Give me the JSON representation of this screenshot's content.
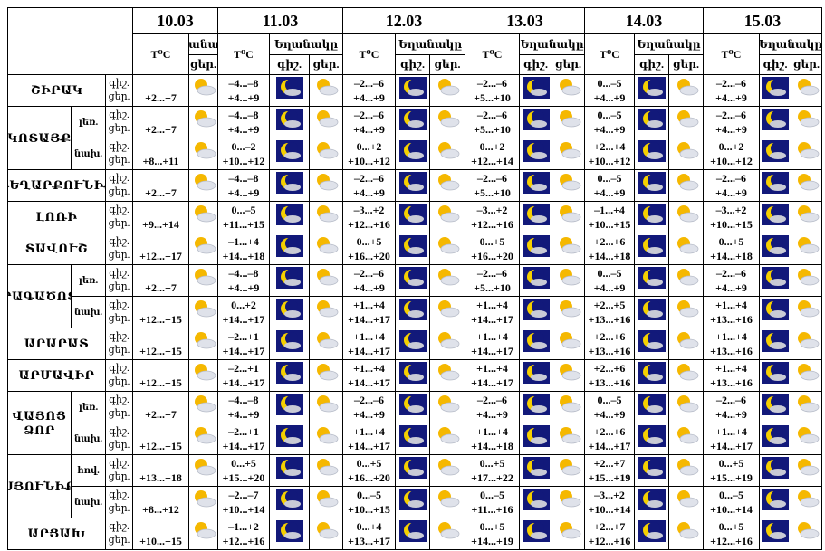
{
  "header": {
    "dates": [
      "10.03",
      "11.03",
      "12.03",
      "13.03",
      "14.03",
      "15.03"
    ],
    "temp_label": "T⁰C",
    "weather_label": "Եղանակը",
    "night": "գիշ.",
    "day": "ցեր."
  },
  "regions": [
    {
      "name": "ՇԻՐԱԿ",
      "rows": [
        {
          "first": "+2...+7",
          "days": [
            [
              "–4...–8",
              "+4...+9"
            ],
            [
              "–2...–6",
              "+4...+9"
            ],
            [
              "–2...–6",
              "+5...+10"
            ],
            [
              "0...–5",
              "+4...+9"
            ],
            [
              "–2...–6",
              "+4...+9"
            ]
          ]
        }
      ]
    },
    {
      "name": "ԿՈՏԱՅՔ",
      "rows": [
        {
          "sub": "լեռ.",
          "first": "+2...+7",
          "days": [
            [
              "–4...–8",
              "+4...+9"
            ],
            [
              "–2...–6",
              "+4...+9"
            ],
            [
              "–2...–6",
              "+5...+10"
            ],
            [
              "0...–5",
              "+4...+9"
            ],
            [
              "–2...–6",
              "+4...+9"
            ]
          ]
        },
        {
          "sub": "նախ.",
          "first": "+8...+11",
          "days": [
            [
              "0...–2",
              "+10...+12"
            ],
            [
              "0...+2",
              "+10...+12"
            ],
            [
              "0...+2",
              "+12...+14"
            ],
            [
              "+2...+4",
              "+10...+12"
            ],
            [
              "0...+2",
              "+10...+12"
            ]
          ]
        }
      ]
    },
    {
      "name": "ԳԵՂԱՐՔՈՒՆԻՔ",
      "rows": [
        {
          "first": "+2...+7",
          "days": [
            [
              "–4...–8",
              "+4...+9"
            ],
            [
              "–2...–6",
              "+4...+9"
            ],
            [
              "–2...–6",
              "+5...+10"
            ],
            [
              "0...–5",
              "+4...+9"
            ],
            [
              "–2...–6",
              "+4...+9"
            ]
          ]
        }
      ]
    },
    {
      "name": "ԼՈՌԻ",
      "rows": [
        {
          "first": "+9...+14",
          "days": [
            [
              "0...–5",
              "+11...+15"
            ],
            [
              "–3...+2",
              "+12...+16"
            ],
            [
              "–3...+2",
              "+12...+16"
            ],
            [
              "–1...+4",
              "+10...+15"
            ],
            [
              "–3...+2",
              "+10...+15"
            ]
          ]
        }
      ]
    },
    {
      "name": "ՏԱՎՈՒՇ",
      "rows": [
        {
          "first": "+12...+17",
          "days": [
            [
              "–1...+4",
              "+14...+18"
            ],
            [
              "0...+5",
              "+16...+20"
            ],
            [
              "0...+5",
              "+16...+20"
            ],
            [
              "+2...+6",
              "+14...+18"
            ],
            [
              "0...+5",
              "+14...+18"
            ]
          ]
        }
      ]
    },
    {
      "name": "ԱՐԱԳԱԾՈՏՆ",
      "rows": [
        {
          "sub": "լեռ.",
          "first": "+2...+7",
          "days": [
            [
              "–4...–8",
              "+4...+9"
            ],
            [
              "–2...–6",
              "+4...+9"
            ],
            [
              "–2...–6",
              "+5...+10"
            ],
            [
              "0...–5",
              "+4...+9"
            ],
            [
              "–2...–6",
              "+4...+9"
            ]
          ]
        },
        {
          "sub": "նախ.",
          "first": "+12...+15",
          "days": [
            [
              "0...+2",
              "+14...+17"
            ],
            [
              "+1...+4",
              "+14...+17"
            ],
            [
              "+1...+4",
              "+14...+17"
            ],
            [
              "+2...+5",
              "+13...+16"
            ],
            [
              "+1...+4",
              "+13...+16"
            ]
          ]
        }
      ]
    },
    {
      "name": "ԱՐԱՐԱՏ",
      "rows": [
        {
          "first": "+12...+15",
          "days": [
            [
              "–2...+1",
              "+14...+17"
            ],
            [
              "+1...+4",
              "+14...+17"
            ],
            [
              "+1...+4",
              "+14...+17"
            ],
            [
              "+2...+6",
              "+13...+16"
            ],
            [
              "+1...+4",
              "+13...+16"
            ]
          ]
        }
      ]
    },
    {
      "name": "ԱՐՄԱՎԻՐ",
      "rows": [
        {
          "first": "+12...+15",
          "days": [
            [
              "–2...+1",
              "+14...+17"
            ],
            [
              "+1...+4",
              "+14...+17"
            ],
            [
              "+1...+4",
              "+14...+17"
            ],
            [
              "+2...+6",
              "+13...+16"
            ],
            [
              "+1...+4",
              "+13...+16"
            ]
          ]
        }
      ]
    },
    {
      "name": "ՎԱՅՈՑ ՁՈՐ",
      "rows": [
        {
          "sub": "լեռ.",
          "first": "+2...+7",
          "days": [
            [
              "–4...–8",
              "+4...+9"
            ],
            [
              "–2...–6",
              "+4...+9"
            ],
            [
              "–2...–6",
              "+4...+9"
            ],
            [
              "0...–5",
              "+4...+9"
            ],
            [
              "–2...–6",
              "+4...+9"
            ]
          ]
        },
        {
          "sub": "նախ.",
          "first": "+12...+15",
          "days": [
            [
              "–2...+1",
              "+14...+17"
            ],
            [
              "+1...+4",
              "+14...+17"
            ],
            [
              "+1...+4",
              "+14...+18"
            ],
            [
              "+2...+6",
              "+14...+17"
            ],
            [
              "+1...+4",
              "+14...+17"
            ]
          ]
        }
      ]
    },
    {
      "name": "ՍՅՈՒՆԻՔ",
      "rows": [
        {
          "sub": "հով.",
          "first": "+13...+18",
          "days": [
            [
              "0...+5",
              "+15...+20"
            ],
            [
              "0...+5",
              "+16...+20"
            ],
            [
              "0...+5",
              "+17...+22"
            ],
            [
              "+2...+7",
              "+15...+19"
            ],
            [
              "0...+5",
              "+15...+19"
            ]
          ]
        },
        {
          "sub": "նախ.",
          "first": "+8...+12",
          "days": [
            [
              "–2...–7",
              "+10...+14"
            ],
            [
              "0...–5",
              "+10...+15"
            ],
            [
              "0...–5",
              "+11...+16"
            ],
            [
              "–3...+2",
              "+10...+14"
            ],
            [
              "0...–5",
              "+10...+14"
            ]
          ]
        }
      ]
    },
    {
      "name": "ԱՐՑԱԽ",
      "rows": [
        {
          "first": "+10...+15",
          "days": [
            [
              "–1...+2",
              "+12...+16"
            ],
            [
              "0...+4",
              "+13...+17"
            ],
            [
              "0...+5",
              "+14...+19"
            ],
            [
              "+2...+7",
              "+12...+16"
            ],
            [
              "0...+5",
              "+12...+16"
            ]
          ]
        }
      ]
    }
  ]
}
